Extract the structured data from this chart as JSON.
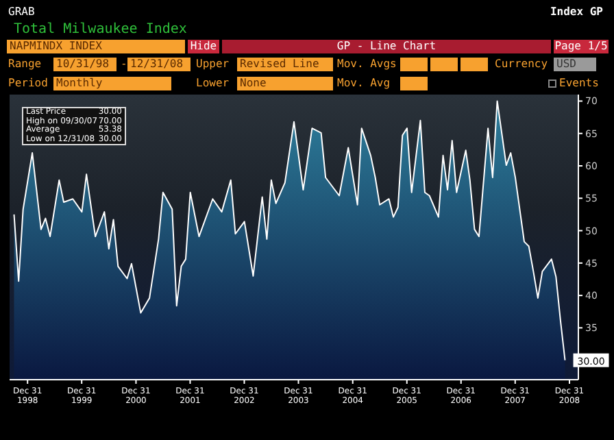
{
  "chart_data": {
    "type": "area",
    "title": "Total Milwaukee Index",
    "x": [
      "1998-10",
      "1998-11",
      "1998-12",
      "1999-02",
      "1999-04",
      "1999-05",
      "1999-06",
      "1999-08",
      "1999-09",
      "1999-11",
      "2000-01",
      "2000-02",
      "2000-04",
      "2000-06",
      "2000-07",
      "2000-08",
      "2000-09",
      "2000-11",
      "2000-12",
      "2001-02",
      "2001-04",
      "2001-06",
      "2001-07",
      "2001-09",
      "2001-10",
      "2001-11",
      "2001-12",
      "2002-01",
      "2002-03",
      "2002-06",
      "2002-08",
      "2002-10",
      "2002-11",
      "2003-01",
      "2003-03",
      "2003-05",
      "2003-06",
      "2003-07",
      "2003-08",
      "2003-10",
      "2003-12",
      "2004-02",
      "2004-04",
      "2004-06",
      "2004-07",
      "2004-10",
      "2004-12",
      "2005-02",
      "2005-03",
      "2005-05",
      "2005-06",
      "2005-07",
      "2005-09",
      "2005-10",
      "2005-11",
      "2005-12",
      "2006-01",
      "2006-02",
      "2006-04",
      "2006-05",
      "2006-06",
      "2006-08",
      "2006-09",
      "2006-10",
      "2006-11",
      "2006-12",
      "2007-02",
      "2007-03",
      "2007-04",
      "2007-05",
      "2007-07",
      "2007-08",
      "2007-09",
      "2007-11",
      "2007-12",
      "2008-01",
      "2008-03",
      "2008-04",
      "2008-05",
      "2008-06",
      "2008-07",
      "2008-09",
      "2008-10",
      "2008-11",
      "2008-12"
    ],
    "series": [
      {
        "color": "#2e7f9c",
        "values": [
          52.5,
          42.2,
          53.3,
          62,
          50.2,
          51.9,
          49.1,
          57.8,
          54.4,
          54.9,
          52.9,
          58.7,
          49.1,
          52.9,
          47.2,
          51.7,
          44.5,
          42.6,
          44.9,
          37.3,
          39.6,
          48.7,
          55.9,
          53.3,
          38.4,
          44.5,
          45.6,
          55.9,
          49.1,
          54.9,
          52.9,
          57.8,
          49.5,
          51.4,
          43,
          55.2,
          48.7,
          57.8,
          54.2,
          57.4,
          66.8,
          56.3,
          65.8,
          65.1,
          58.2,
          55.4,
          62.8,
          54,
          65.8,
          61.6,
          58.2,
          54,
          54.9,
          52.1,
          53.6,
          64.7,
          65.8,
          55.9,
          67,
          55.9,
          55.4,
          52.1,
          61.6,
          56.3,
          63.9,
          55.9,
          62.4,
          57.8,
          50.2,
          49.1,
          65.8,
          58.2,
          70,
          60.1,
          62,
          58.2,
          48.3,
          47.6,
          43.8,
          39.6,
          43.7,
          45.6,
          42.9,
          36,
          30
        ]
      }
    ],
    "xlim": [
      "1998-09",
      "2009-03"
    ],
    "xticks": [
      {
        "value": "1998-12-31",
        "label": "Dec 31\n1998"
      },
      {
        "value": "1999-12-31",
        "label": "Dec 31\n1999"
      },
      {
        "value": "2000-12-31",
        "label": "Dec 31\n2000"
      },
      {
        "value": "2001-12-31",
        "label": "Dec 31\n2001"
      },
      {
        "value": "2002-12-31",
        "label": "Dec 31\n2002"
      },
      {
        "value": "2003-12-31",
        "label": "Dec 31\n2003"
      },
      {
        "value": "2004-12-31",
        "label": "Dec 31\n2004"
      },
      {
        "value": "2005-12-31",
        "label": "Dec 31\n2005"
      },
      {
        "value": "2006-12-31",
        "label": "Dec 31\n2006"
      },
      {
        "value": "2007-12-31",
        "label": "Dec 31\n2007"
      },
      {
        "value": "2008-12-31",
        "label": "Dec 31\n2008"
      }
    ],
    "ylim": [
      27,
      71
    ],
    "yticks": [
      35,
      40,
      45,
      50,
      55,
      60,
      65,
      70
    ],
    "annotations": [
      "GRAB",
      "Index GP",
      "NAPMINDX INDEX",
      "Hide",
      "GP - Line Chart",
      "Page 1/5",
      "Range",
      "10/31/98",
      "-",
      "12/31/08",
      "Upper",
      "Revised Line",
      "Mov. Avgs",
      "Currency",
      "USD",
      "Period",
      "Monthly",
      "Lower",
      "None",
      "Mov. Avg",
      "Events",
      "Last Price",
      "30.00",
      "High on 09/30/07",
      "70.00",
      "Average",
      "53.38",
      "Low on 12/31/08",
      "30.00",
      {
        "text": "30.00",
        "x": "2008-12",
        "y": 30
      }
    ]
  }
}
